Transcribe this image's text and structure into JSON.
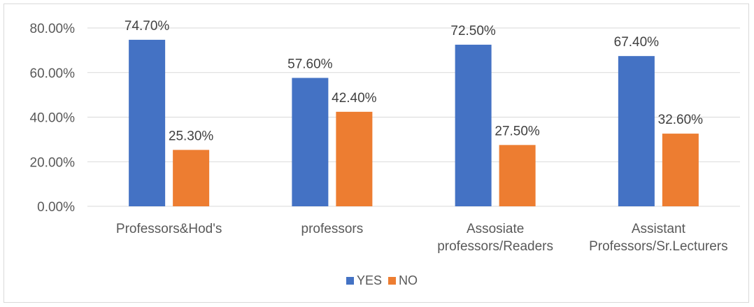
{
  "chart_data": {
    "type": "bar",
    "categories": [
      [
        "Professors&Hod's"
      ],
      [
        "professors"
      ],
      [
        "Assosiate",
        "professors/Readers"
      ],
      [
        "Assistant",
        "Professors/Sr.Lecturers"
      ]
    ],
    "series": [
      {
        "name": "YES",
        "color": "#4472C4",
        "values": [
          74.7,
          57.6,
          72.5,
          67.4
        ],
        "labels": [
          "74.70%",
          "57.60%",
          "72.50%",
          "67.40%"
        ]
      },
      {
        "name": "NO",
        "color": "#ED7D31",
        "values": [
          25.3,
          42.4,
          27.5,
          32.6
        ],
        "labels": [
          "25.30%",
          "42.40%",
          "27.50%",
          "32.60%"
        ]
      }
    ],
    "y_ticks": [
      0,
      20,
      40,
      60,
      80
    ],
    "y_tick_labels": [
      "0.00%",
      "20.00%",
      "40.00%",
      "60.00%",
      "80.00%"
    ],
    "ylim": [
      0,
      80
    ],
    "grid": true,
    "legend_position": "bottom",
    "title": "",
    "xlabel": "",
    "ylabel": ""
  }
}
